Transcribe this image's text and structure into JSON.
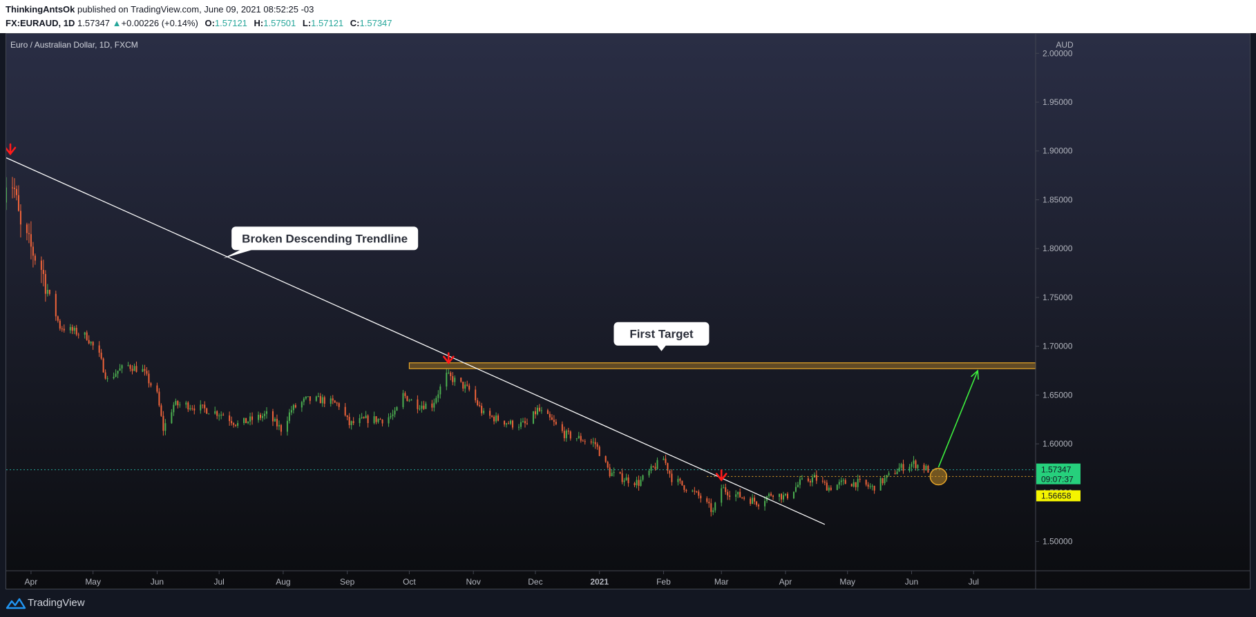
{
  "header": {
    "author": "ThinkingAntsOk",
    "published": "published on TradingView.com, June 09, 2021 08:52:25 -03",
    "symbol": "FX:EURAUD, 1D",
    "last_price": "1.57347",
    "change": "+0.00226 (+0.14%)",
    "ohlc": [
      {
        "label": "O:",
        "value": "1.57121"
      },
      {
        "label": "H:",
        "value": "1.57501"
      },
      {
        "label": "L:",
        "value": "1.57121"
      },
      {
        "label": "C:",
        "value": "1.57347"
      }
    ]
  },
  "footer": {
    "brand": "TradingView"
  },
  "colors": {
    "background_top": "#2a2e45",
    "background_bottom": "#0b0c0f",
    "up": "#26a69a",
    "up_bright": "#4caf50",
    "down": "#ef5350",
    "down_candle": "#f0643a",
    "trendline": "#ffffff",
    "target_zone": "#e8a628",
    "arrow_marker": "#ff1a1a",
    "projection_arrow": "#3ef03e",
    "price_label_bg": "#26d07c",
    "level_label_bg": "#f5f500"
  },
  "chart_data": {
    "type": "candlestick",
    "title": "Euro / Australian Dollar, 1D, FXCM",
    "currency": "AUD",
    "x_range": [
      "2020-03-20",
      "2021-07-31"
    ],
    "ylim": [
      1.47,
      2.02
    ],
    "y_ticks": [
      "2.00000",
      "1.95000",
      "1.90000",
      "1.85000",
      "1.80000",
      "1.75000",
      "1.70000",
      "1.65000",
      "1.60000",
      "1.55000",
      "1.50000"
    ],
    "x_ticks": [
      {
        "label": "Apr",
        "date": "2020-04-01",
        "bold": false
      },
      {
        "label": "May",
        "date": "2020-05-01",
        "bold": false
      },
      {
        "label": "Jun",
        "date": "2020-06-01",
        "bold": false
      },
      {
        "label": "Jul",
        "date": "2020-07-01",
        "bold": false
      },
      {
        "label": "Aug",
        "date": "2020-08-01",
        "bold": false
      },
      {
        "label": "Sep",
        "date": "2020-09-01",
        "bold": false
      },
      {
        "label": "Oct",
        "date": "2020-10-01",
        "bold": false
      },
      {
        "label": "Nov",
        "date": "2020-11-01",
        "bold": false
      },
      {
        "label": "Dec",
        "date": "2020-12-01",
        "bold": false
      },
      {
        "label": "2021",
        "date": "2021-01-01",
        "bold": true
      },
      {
        "label": "Feb",
        "date": "2021-02-01",
        "bold": false
      },
      {
        "label": "Mar",
        "date": "2021-03-01",
        "bold": false
      },
      {
        "label": "Apr",
        "date": "2021-04-01",
        "bold": false
      },
      {
        "label": "May",
        "date": "2021-05-01",
        "bold": false
      },
      {
        "label": "Jun",
        "date": "2021-06-01",
        "bold": false
      },
      {
        "label": "Jul",
        "date": "2021-07-01",
        "bold": false
      }
    ],
    "price_path": [
      [
        "2020-03-19",
        1.86
      ],
      [
        "2020-03-21",
        1.88
      ],
      [
        "2020-03-24",
        1.86
      ],
      [
        "2020-03-27",
        1.82
      ],
      [
        "2020-04-01",
        1.8
      ],
      [
        "2020-04-06",
        1.78
      ],
      [
        "2020-04-10",
        1.75
      ],
      [
        "2020-04-15",
        1.72
      ],
      [
        "2020-04-22",
        1.715
      ],
      [
        "2020-04-28",
        1.71
      ],
      [
        "2020-05-04",
        1.69
      ],
      [
        "2020-05-08",
        1.665
      ],
      [
        "2020-05-13",
        1.675
      ],
      [
        "2020-05-18",
        1.68
      ],
      [
        "2020-05-25",
        1.675
      ],
      [
        "2020-06-01",
        1.65
      ],
      [
        "2020-06-04",
        1.615
      ],
      [
        "2020-06-09",
        1.64
      ],
      [
        "2020-06-15",
        1.64
      ],
      [
        "2020-06-25",
        1.635
      ],
      [
        "2020-07-03",
        1.63
      ],
      [
        "2020-07-10",
        1.62
      ],
      [
        "2020-07-17",
        1.625
      ],
      [
        "2020-07-24",
        1.63
      ],
      [
        "2020-07-31",
        1.615
      ],
      [
        "2020-08-05",
        1.635
      ],
      [
        "2020-08-12",
        1.645
      ],
      [
        "2020-08-20",
        1.645
      ],
      [
        "2020-08-28",
        1.64
      ],
      [
        "2020-09-02",
        1.62
      ],
      [
        "2020-09-10",
        1.625
      ],
      [
        "2020-09-18",
        1.625
      ],
      [
        "2020-09-24",
        1.63
      ],
      [
        "2020-09-28",
        1.65
      ],
      [
        "2020-10-05",
        1.64
      ],
      [
        "2020-10-12",
        1.64
      ],
      [
        "2020-10-19",
        1.67
      ],
      [
        "2020-10-23",
        1.665
      ],
      [
        "2020-10-30",
        1.655
      ],
      [
        "2020-11-06",
        1.63
      ],
      [
        "2020-11-13",
        1.625
      ],
      [
        "2020-11-20",
        1.62
      ],
      [
        "2020-11-27",
        1.62
      ],
      [
        "2020-12-02",
        1.635
      ],
      [
        "2020-12-08",
        1.625
      ],
      [
        "2020-12-15",
        1.61
      ],
      [
        "2020-12-23",
        1.605
      ],
      [
        "2020-12-30",
        1.6
      ],
      [
        "2021-01-06",
        1.57
      ],
      [
        "2021-01-12",
        1.565
      ],
      [
        "2021-01-20",
        1.56
      ],
      [
        "2021-01-27",
        1.575
      ],
      [
        "2021-02-01",
        1.585
      ],
      [
        "2021-02-05",
        1.565
      ],
      [
        "2021-02-12",
        1.555
      ],
      [
        "2021-02-19",
        1.545
      ],
      [
        "2021-02-25",
        1.53
      ],
      [
        "2021-03-01",
        1.555
      ],
      [
        "2021-03-05",
        1.55
      ],
      [
        "2021-03-12",
        1.545
      ],
      [
        "2021-03-19",
        1.54
      ],
      [
        "2021-03-26",
        1.55
      ],
      [
        "2021-04-01",
        1.545
      ],
      [
        "2021-04-08",
        1.56
      ],
      [
        "2021-04-15",
        1.565
      ],
      [
        "2021-04-22",
        1.555
      ],
      [
        "2021-04-29",
        1.56
      ],
      [
        "2021-05-06",
        1.56
      ],
      [
        "2021-05-13",
        1.555
      ],
      [
        "2021-05-20",
        1.565
      ],
      [
        "2021-05-26",
        1.575
      ],
      [
        "2021-06-02",
        1.58
      ],
      [
        "2021-06-09",
        1.5735
      ]
    ],
    "trendline": {
      "from": [
        "2020-03-20",
        1.893
      ],
      "to": [
        "2021-04-20",
        1.5175
      ]
    },
    "target_zone": {
      "from": "2020-10-01",
      "y_low": 1.677,
      "y_high": 1.683
    },
    "dotted_levels": [
      {
        "value": 1.57347,
        "style": "green"
      },
      {
        "value": 1.56658,
        "style": "orange",
        "from": "2021-02-22"
      }
    ],
    "markers": [
      {
        "type": "down-arrow",
        "date": "2020-03-22",
        "y": 1.897
      },
      {
        "type": "down-arrow",
        "date": "2020-10-20",
        "y": 1.683
      },
      {
        "type": "down-arrow",
        "date": "2021-03-01",
        "y": 1.563
      }
    ],
    "circle": {
      "date": "2021-06-14",
      "y": 1.5665
    },
    "projection_arrow": {
      "from": [
        "2021-06-14",
        1.576
      ],
      "to": [
        "2021-07-03",
        1.675
      ]
    },
    "annotations": [
      {
        "text": "Broken Descending Trendline",
        "anchor_date": "2020-07-03",
        "anchor_y": 1.79
      },
      {
        "text": "First Target",
        "anchor_date": "2021-01-31",
        "anchor_y": 1.695
      }
    ],
    "price_labels": {
      "last": "1.57347",
      "countdown": "09:07:37",
      "level": "1.56658"
    }
  }
}
